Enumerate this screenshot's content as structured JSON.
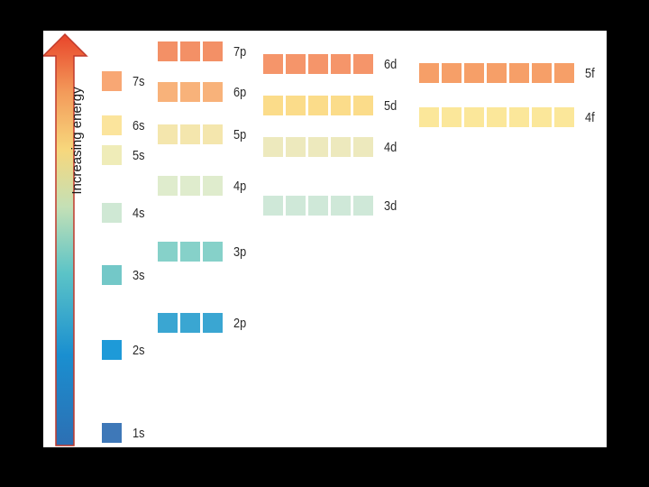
{
  "axis": {
    "label": "Increasing energy",
    "gradient": [
      "#e8442a",
      "#f39a5a",
      "#f7d77c",
      "#c4e0b6",
      "#5cc4c7",
      "#1a8fd0",
      "#2d6fb3"
    ]
  },
  "orbitals": [
    {
      "id": "1s",
      "label": "1s",
      "count": 1,
      "color": "#3e78b8"
    },
    {
      "id": "2s",
      "label": "2s",
      "count": 1,
      "color": "#1e9ad8"
    },
    {
      "id": "2p",
      "label": "2p",
      "count": 3,
      "color": "#3aa6d2"
    },
    {
      "id": "3s",
      "label": "3s",
      "count": 1,
      "color": "#73c8c8"
    },
    {
      "id": "3p",
      "label": "3p",
      "count": 3,
      "color": "#86d1c9"
    },
    {
      "id": "3d",
      "label": "3d",
      "count": 5,
      "color": "#cfe8d8"
    },
    {
      "id": "4s",
      "label": "4s",
      "count": 1,
      "color": "#cfe8d4"
    },
    {
      "id": "4p",
      "label": "4p",
      "count": 3,
      "color": "#dfeccd"
    },
    {
      "id": "4d",
      "label": "4d",
      "count": 5,
      "color": "#ede9bd"
    },
    {
      "id": "4f",
      "label": "4f",
      "count": 7,
      "color": "#fbe79a"
    },
    {
      "id": "5s",
      "label": "5s",
      "count": 1,
      "color": "#efecb8"
    },
    {
      "id": "5p",
      "label": "5p",
      "count": 3,
      "color": "#f4e6ad"
    },
    {
      "id": "5d",
      "label": "5d",
      "count": 5,
      "color": "#fbdc8a"
    },
    {
      "id": "5f",
      "label": "5f",
      "count": 7,
      "color": "#f69f68"
    },
    {
      "id": "6s",
      "label": "6s",
      "count": 1,
      "color": "#fbe49c"
    },
    {
      "id": "6p",
      "label": "6p",
      "count": 3,
      "color": "#f8b27a"
    },
    {
      "id": "6d",
      "label": "6d",
      "count": 5,
      "color": "#f5956a"
    },
    {
      "id": "7s",
      "label": "7s",
      "count": 1,
      "color": "#f8a774"
    },
    {
      "id": "7p",
      "label": "7p",
      "count": 3,
      "color": "#f39066"
    }
  ]
}
